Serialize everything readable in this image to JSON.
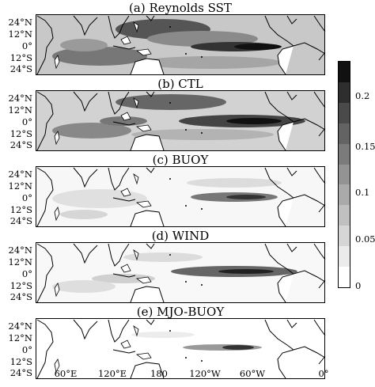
{
  "panels": [
    {
      "id": "a",
      "title": "(a) Reynolds SST"
    },
    {
      "id": "b",
      "title": "(b) CTL"
    },
    {
      "id": "c",
      "title": "(c) BUOY"
    },
    {
      "id": "d",
      "title": "(d) WIND"
    },
    {
      "id": "e",
      "title": "(e) MJO-BUOY"
    }
  ],
  "lat_labels": [
    "24°N",
    "12°N",
    "0°",
    "12°S",
    "24°S"
  ],
  "lon_labels": [
    "60°E",
    "120°E",
    "180",
    "120°W",
    "60°W",
    "0°"
  ],
  "colorbar": {
    "labels": [
      "0.2",
      "0.15",
      "0.1",
      "0.05",
      "0"
    ],
    "colors": [
      "#111111",
      "#2e2e2e",
      "#4a4a4a",
      "#636363",
      "#7b7b7b",
      "#939393",
      "#aaaaaa",
      "#c0c0c0",
      "#d6d6d6",
      "#ebebeb",
      "#ffffff"
    ]
  }
}
